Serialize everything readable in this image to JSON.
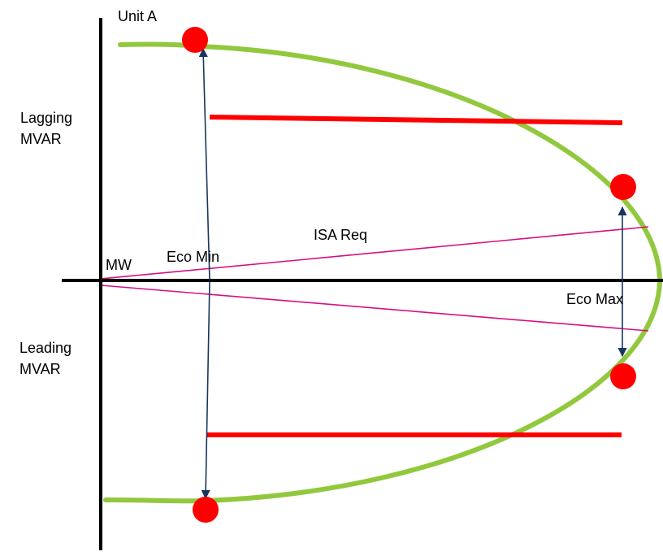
{
  "title": "Unit A",
  "labels": {
    "lagging_line1": "Lagging",
    "lagging_line2": "MVAR",
    "leading_line1": "Leading",
    "leading_line2": "MVAR",
    "x_axis": "MW",
    "eco_min": "Eco Min",
    "eco_max": "Eco Max",
    "isa_req": "ISA Req"
  },
  "colors": {
    "axis": "#000000",
    "capability_curve": "#92c83e",
    "limit_bar": "#ff0000",
    "marker": "#ff0000",
    "isa_line": "#d6107f",
    "arrow": "#17375e"
  }
}
